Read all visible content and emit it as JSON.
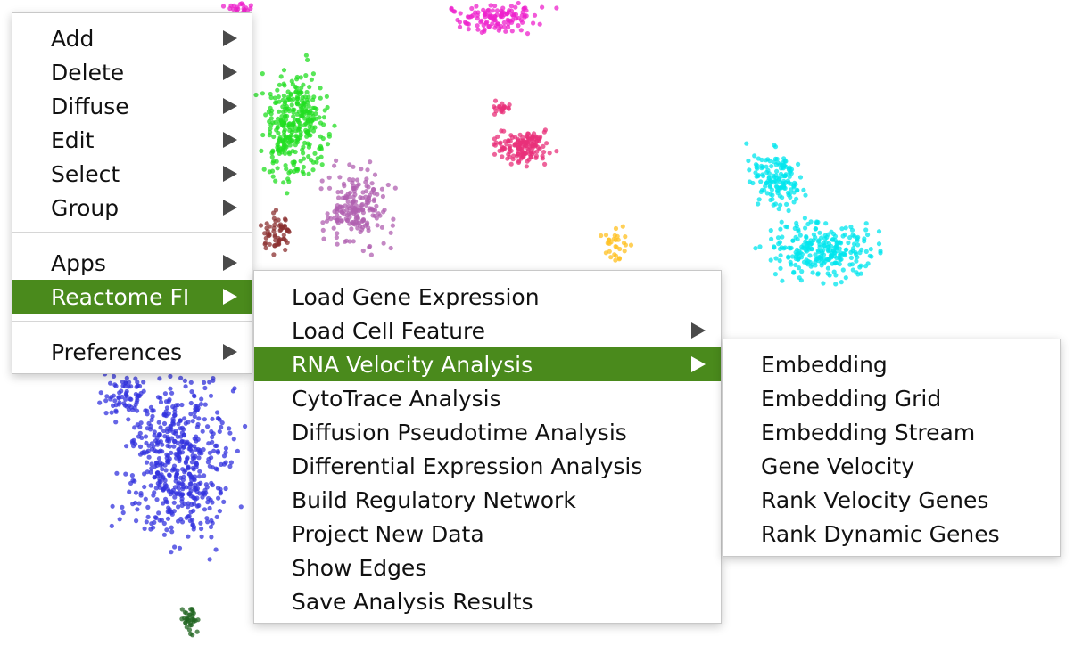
{
  "colors": {
    "highlight": "#4a8a1c",
    "menu_background": "#ffffff",
    "menu_text": "#111111",
    "arrow": "#4a4a4a"
  },
  "context_menu": {
    "items": [
      {
        "label": "Add",
        "submenu": true
      },
      {
        "label": "Delete",
        "submenu": true
      },
      {
        "label": "Diffuse",
        "submenu": true
      },
      {
        "label": "Edit",
        "submenu": true
      },
      {
        "label": "Select",
        "submenu": true
      },
      {
        "label": "Group",
        "submenu": true
      },
      {
        "label": "Apps",
        "submenu": true
      },
      {
        "label": "Reactome FI",
        "submenu": true,
        "highlighted": true
      },
      {
        "label": "Preferences",
        "submenu": true
      }
    ]
  },
  "reactome_menu": {
    "items": [
      {
        "label": "Load Gene Expression",
        "submenu": false
      },
      {
        "label": "Load Cell Feature",
        "submenu": true
      },
      {
        "label": "RNA Velocity Analysis",
        "submenu": true,
        "highlighted": true
      },
      {
        "label": "CytoTrace Analysis",
        "submenu": false
      },
      {
        "label": "Diffusion Pseudotime Analysis",
        "submenu": false
      },
      {
        "label": "Differential Expression Analysis",
        "submenu": false
      },
      {
        "label": "Build Regulatory Network",
        "submenu": false
      },
      {
        "label": "Project New Data",
        "submenu": false
      },
      {
        "label": "Show Edges",
        "submenu": false
      },
      {
        "label": "Save Analysis Results",
        "submenu": false
      }
    ]
  },
  "velocity_menu": {
    "items": [
      {
        "label": "Embedding"
      },
      {
        "label": "Embedding Grid"
      },
      {
        "label": "Embedding Stream"
      },
      {
        "label": "Gene Velocity"
      },
      {
        "label": "Rank Velocity Genes"
      },
      {
        "label": "Rank Dynamic Genes"
      }
    ]
  },
  "scatter_clusters": [
    {
      "name": "cyan-cluster",
      "color": "#00e5ee"
    },
    {
      "name": "green-cluster",
      "color": "#22dd22"
    },
    {
      "name": "blue-cluster",
      "color": "#3333dd"
    },
    {
      "name": "magenta-cluster",
      "color": "#ee22cc"
    },
    {
      "name": "pink-cluster",
      "color": "#e8307a"
    },
    {
      "name": "plum-cluster",
      "color": "#b060b0"
    },
    {
      "name": "brown-cluster",
      "color": "#8b3030"
    },
    {
      "name": "orange-cluster",
      "color": "#ffc020"
    },
    {
      "name": "dark-green-cluster",
      "color": "#226622"
    }
  ]
}
